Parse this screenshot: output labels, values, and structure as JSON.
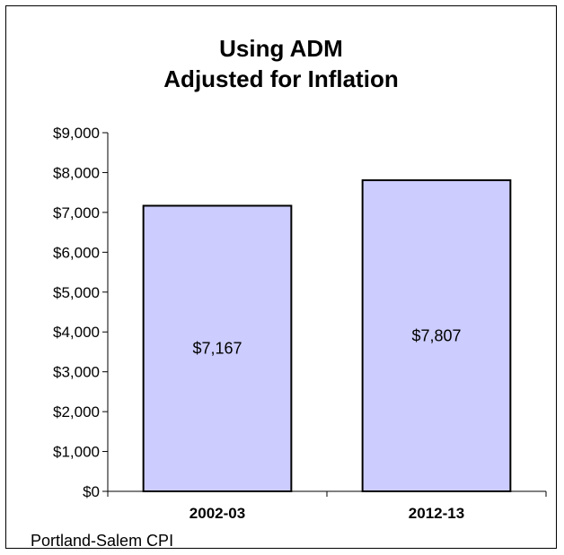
{
  "chart_data": {
    "type": "bar",
    "title_lines": [
      "Using ADM",
      "Adjusted for Inflation"
    ],
    "categories": [
      "2002-03",
      "2012-13"
    ],
    "values": [
      7167,
      7807
    ],
    "data_labels": [
      "$7,167",
      "$7,807"
    ],
    "yticks": [
      0,
      1000,
      2000,
      3000,
      4000,
      5000,
      6000,
      7000,
      8000,
      9000
    ],
    "ytick_labels": [
      "$0",
      "$1,000",
      "$2,000",
      "$3,000",
      "$4,000",
      "$5,000",
      "$6,000",
      "$7,000",
      "$8,000",
      "$9,000"
    ],
    "ylim": [
      0,
      9000
    ],
    "xlabel": "",
    "ylabel": "",
    "grid": false,
    "legend": "none",
    "bar_color": "#ccccff",
    "bar_edge_color": "#000000",
    "footnote": "Portland-Salem  CPI"
  }
}
